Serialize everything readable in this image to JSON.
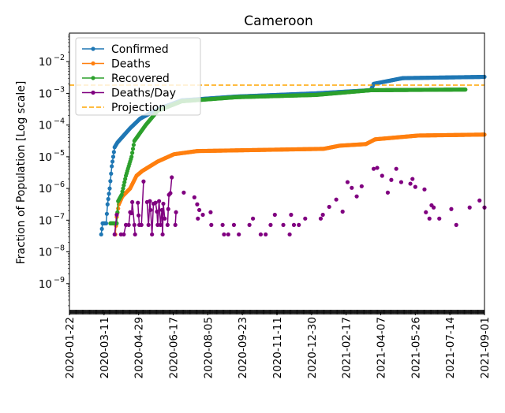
{
  "chart_data": {
    "type": "line",
    "title": "Cameroon",
    "xlabel": "",
    "ylabel": "Fraction of Population [Log scale]",
    "y_scale": "log",
    "ylim_log10": [
      -9.9,
      -1.1
    ],
    "x_unit": "days since 2020-01-22",
    "xlim_days": [
      0,
      588
    ],
    "x_tick_days": [
      0,
      49,
      98,
      147,
      196,
      245,
      294,
      343,
      392,
      441,
      490,
      539,
      588
    ],
    "x_tick_labels": [
      "2020-01-22",
      "2020-03-11",
      "2020-04-29",
      "2020-06-17",
      "2020-08-05",
      "2020-09-23",
      "2020-11-11",
      "2020-12-30",
      "2021-02-17",
      "2021-04-07",
      "2021-05-26",
      "2021-07-14",
      "2021-09-01"
    ],
    "y_tick_log10": [
      -9,
      -8,
      -7,
      -6,
      -5,
      -4,
      -3,
      -2
    ],
    "y_tick_labels": [
      "10",
      "10",
      "10",
      "10",
      "10",
      "10",
      "10",
      "10"
    ],
    "y_tick_exponents": [
      "−9",
      "−8",
      "−7",
      "−6",
      "−5",
      "−4",
      "−3",
      "−2"
    ],
    "legend_position": "top-left",
    "series": [
      {
        "name": "Confirmed",
        "color": "#1f77b4",
        "style": "line-marker",
        "points_log10": [
          [
            45,
            -7.45
          ],
          [
            47,
            -7.1
          ],
          [
            52,
            -7.1
          ],
          [
            54,
            -6.5
          ],
          [
            57,
            -6.0
          ],
          [
            60,
            -5.3
          ],
          [
            64,
            -4.7
          ],
          [
            68,
            -4.55
          ],
          [
            86,
            -4.1
          ],
          [
            100,
            -3.8
          ],
          [
            125,
            -3.5
          ],
          [
            159,
            -3.22
          ],
          [
            237,
            -3.1
          ],
          [
            349,
            -3.0
          ],
          [
            427,
            -2.9
          ],
          [
            431,
            -2.7
          ],
          [
            472,
            -2.52
          ],
          [
            588,
            -2.48
          ]
        ]
      },
      {
        "name": "Deaths",
        "color": "#ff7f0e",
        "style": "line-marker",
        "points_log10": [
          [
            65,
            -7.45
          ],
          [
            67,
            -6.9
          ],
          [
            70,
            -6.5
          ],
          [
            75,
            -6.25
          ],
          [
            86,
            -6.0
          ],
          [
            95,
            -5.6
          ],
          [
            103,
            -5.45
          ],
          [
            125,
            -5.15
          ],
          [
            148,
            -4.92
          ],
          [
            181,
            -4.82
          ],
          [
            282,
            -4.78
          ],
          [
            360,
            -4.75
          ],
          [
            383,
            -4.65
          ],
          [
            420,
            -4.6
          ],
          [
            433,
            -4.45
          ],
          [
            494,
            -4.33
          ],
          [
            588,
            -4.3
          ]
        ]
      },
      {
        "name": "Recovered",
        "color": "#2ca02c",
        "style": "line-marker",
        "points_log10": [
          [
            58,
            -7.1
          ],
          [
            67,
            -7.1
          ],
          [
            69,
            -6.4
          ],
          [
            74,
            -6.2
          ],
          [
            80,
            -5.6
          ],
          [
            88,
            -5.0
          ],
          [
            92,
            -4.5
          ],
          [
            108,
            -4.0
          ],
          [
            125,
            -3.55
          ],
          [
            159,
            -3.25
          ],
          [
            237,
            -3.12
          ],
          [
            349,
            -3.05
          ],
          [
            427,
            -2.9
          ],
          [
            561,
            -2.88
          ]
        ]
      },
      {
        "name": "Deaths/Day",
        "color": "#800080",
        "style": "marker",
        "points_log10": [
          [
            64,
            -7.45
          ],
          [
            67,
            -6.83
          ],
          [
            73,
            -7.45
          ],
          [
            77,
            -7.45
          ],
          [
            80,
            -7.15
          ],
          [
            84,
            -7.15
          ],
          [
            86,
            -6.75
          ],
          [
            88,
            -6.78
          ],
          [
            89,
            -6.43
          ],
          [
            92,
            -7.15
          ],
          [
            93,
            -7.45
          ],
          [
            97,
            -6.45
          ],
          [
            98,
            -6.85
          ],
          [
            99,
            -7.15
          ],
          [
            102,
            -7.15
          ],
          [
            105,
            -5.78
          ],
          [
            110,
            -6.43
          ],
          [
            112,
            -7.15
          ],
          [
            114,
            -6.4
          ],
          [
            115,
            -6.68
          ],
          [
            117,
            -7.45
          ],
          [
            119,
            -6.48
          ],
          [
            122,
            -6.45
          ],
          [
            124,
            -6.73
          ],
          [
            125,
            -7.15
          ],
          [
            127,
            -6.4
          ],
          [
            129,
            -7.15
          ],
          [
            131,
            -6.68
          ],
          [
            132,
            -7.45
          ],
          [
            133,
            -6.48
          ],
          [
            135,
            -6.95
          ],
          [
            139,
            -7.15
          ],
          [
            140,
            -6.65
          ],
          [
            141,
            -6.2
          ],
          [
            143,
            -6.15
          ],
          [
            145,
            -5.65
          ],
          [
            150,
            -7.15
          ],
          [
            151,
            -6.75
          ],
          [
            162,
            -6.13
          ],
          [
            177,
            -6.28
          ],
          [
            181,
            -6.5
          ],
          [
            182,
            -6.95
          ],
          [
            184,
            -6.68
          ],
          [
            189,
            -6.83
          ],
          [
            200,
            -6.75
          ],
          [
            201,
            -7.15
          ],
          [
            217,
            -7.15
          ],
          [
            219,
            -7.45
          ],
          [
            225,
            -7.45
          ],
          [
            233,
            -7.15
          ],
          [
            240,
            -7.45
          ],
          [
            255,
            -7.15
          ],
          [
            260,
            -6.95
          ],
          [
            271,
            -7.45
          ],
          [
            278,
            -7.45
          ],
          [
            285,
            -7.15
          ],
          [
            291,
            -6.83
          ],
          [
            303,
            -7.15
          ],
          [
            312,
            -7.45
          ],
          [
            314,
            -6.83
          ],
          [
            318,
            -7.15
          ],
          [
            325,
            -7.15
          ],
          [
            334,
            -6.95
          ],
          [
            356,
            -6.95
          ],
          [
            359,
            -6.83
          ],
          [
            368,
            -6.58
          ],
          [
            378,
            -6.35
          ],
          [
            387,
            -6.73
          ],
          [
            394,
            -5.8
          ],
          [
            400,
            -5.98
          ],
          [
            407,
            -6.25
          ],
          [
            414,
            -5.93
          ],
          [
            431,
            -5.38
          ],
          [
            436,
            -5.35
          ],
          [
            443,
            -5.6
          ],
          [
            451,
            -6.13
          ],
          [
            456,
            -5.73
          ],
          [
            463,
            -5.38
          ],
          [
            470,
            -5.8
          ],
          [
            483,
            -5.85
          ],
          [
            486,
            -5.7
          ],
          [
            490,
            -5.95
          ],
          [
            503,
            -6.03
          ],
          [
            505,
            -6.75
          ],
          [
            510,
            -6.95
          ],
          [
            513,
            -6.53
          ],
          [
            516,
            -6.6
          ],
          [
            524,
            -6.95
          ],
          [
            541,
            -6.65
          ],
          [
            548,
            -7.15
          ],
          [
            567,
            -6.6
          ],
          [
            581,
            -6.38
          ],
          [
            588,
            -6.6
          ]
        ]
      },
      {
        "name": "Projection",
        "color": "#ffa500",
        "style": "dashed",
        "value_log10": -2.74
      }
    ]
  }
}
